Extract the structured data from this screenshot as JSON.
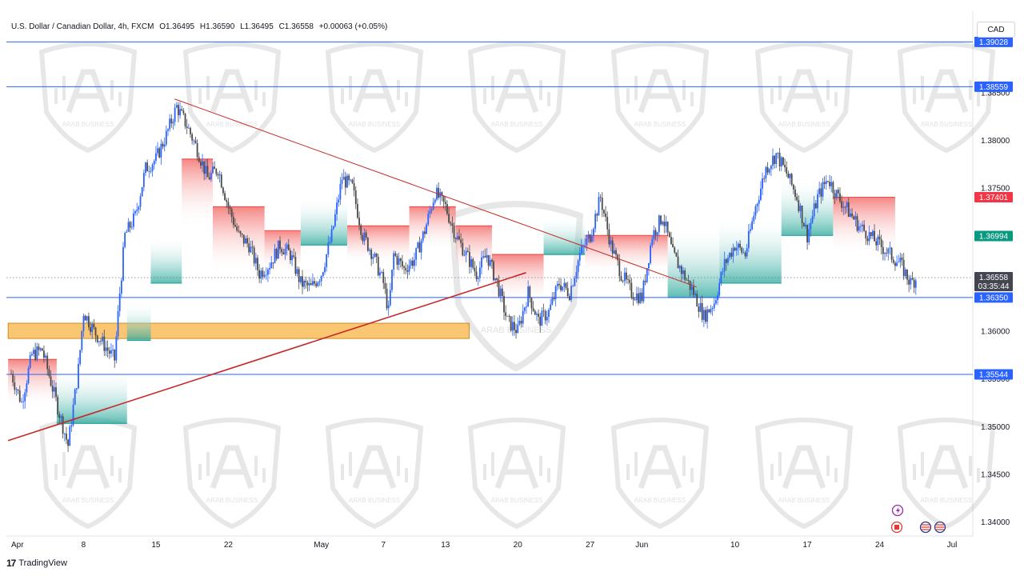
{
  "header": {
    "symbol": "U.S. Dollar / Canadian Dollar, 4h, FXCM",
    "open": "O1.36495",
    "high": "H1.36590",
    "low": "L1.36495",
    "close": "C1.36558",
    "change": "+0.00063 (+0.05%)"
  },
  "currency_label": "CAD",
  "footer": {
    "brand": "TradingView",
    "logo": "17"
  },
  "watermark": {
    "line1": "ARAB BUSINESS"
  },
  "colors": {
    "level_line": "#2962ff",
    "trendline": "#c62828",
    "zone": "#f9a825",
    "cloud_up": "#26a69a",
    "cloud_down": "#ef5350",
    "candle": "#2962ff",
    "candle_dark": "#4a4a4a",
    "price_tag_blue": "#2962ff",
    "price_tag_red": "#f23645",
    "price_tag_green": "#089981",
    "price_tag_dark": "#434651"
  },
  "chart_data": {
    "type": "candlestick",
    "timeframe": "4h",
    "ylim": [
      1.3385,
      1.3935
    ],
    "y_ticks": [
      "1.38500",
      "1.38000",
      "1.37500",
      "1.36000",
      "1.35500",
      "1.35000",
      "1.34500",
      "1.34000"
    ],
    "x_ticks": [
      {
        "label": "Apr",
        "day": 0
      },
      {
        "label": "8",
        "day": 7
      },
      {
        "label": "15",
        "day": 14
      },
      {
        "label": "22",
        "day": 21
      },
      {
        "label": "May",
        "day": 30
      },
      {
        "label": "7",
        "day": 36
      },
      {
        "label": "13",
        "day": 42
      },
      {
        "label": "20",
        "day": 49
      },
      {
        "label": "27",
        "day": 56
      },
      {
        "label": "Jun",
        "day": 61
      },
      {
        "label": "10",
        "day": 70
      },
      {
        "label": "17",
        "day": 77
      },
      {
        "label": "24",
        "day": 84
      },
      {
        "label": "Jul",
        "day": 91
      }
    ],
    "x_range_days": [
      0,
      91.5
    ],
    "horizontal_levels": [
      {
        "price": 1.39028,
        "label": "1.39028"
      },
      {
        "price": 1.38559,
        "label": "1.38559"
      },
      {
        "price": 1.3635,
        "label": "1.36350"
      },
      {
        "price": 1.35544,
        "label": "1.35544"
      }
    ],
    "price_tags": [
      {
        "price": 1.37401,
        "label": "1.37401",
        "color": "red"
      },
      {
        "price": 1.36994,
        "label": "1.36994",
        "color": "green"
      },
      {
        "price": 1.36558,
        "label": "1.36558",
        "color": "dark",
        "countdown": "03:35:44"
      }
    ],
    "current_price": 1.36558,
    "trendlines": [
      {
        "name": "descending-resistance",
        "from": {
          "day": 15.8,
          "price": 1.3843
        },
        "to": {
          "day": 66.3,
          "price": 1.3646
        }
      },
      {
        "name": "ascending-support",
        "from": {
          "day": -0.3,
          "price": 1.3485
        },
        "to": {
          "day": 49.8,
          "price": 1.3661
        }
      }
    ],
    "zone": {
      "from_day": -0.3,
      "to_day": 44.3,
      "price_low": 1.3592,
      "price_high": 1.3608
    },
    "price_path": [
      {
        "day": 0,
        "price": 1.3555
      },
      {
        "day": 1,
        "price": 1.3525
      },
      {
        "day": 2,
        "price": 1.3575
      },
      {
        "day": 3,
        "price": 1.358
      },
      {
        "day": 4,
        "price": 1.354
      },
      {
        "day": 5,
        "price": 1.35
      },
      {
        "day": 5.5,
        "price": 1.348
      },
      {
        "day": 6.5,
        "price": 1.356
      },
      {
        "day": 7,
        "price": 1.362
      },
      {
        "day": 8,
        "price": 1.36
      },
      {
        "day": 9,
        "price": 1.3585
      },
      {
        "day": 10,
        "price": 1.357
      },
      {
        "day": 10.5,
        "price": 1.364
      },
      {
        "day": 11,
        "price": 1.37
      },
      {
        "day": 12,
        "price": 1.372
      },
      {
        "day": 13,
        "price": 1.377
      },
      {
        "day": 14,
        "price": 1.378
      },
      {
        "day": 15,
        "price": 1.3805
      },
      {
        "day": 16,
        "price": 1.3835
      },
      {
        "day": 17,
        "price": 1.3815
      },
      {
        "day": 18,
        "price": 1.379
      },
      {
        "day": 19,
        "price": 1.376
      },
      {
        "day": 20,
        "price": 1.377
      },
      {
        "day": 21,
        "price": 1.373
      },
      {
        "day": 22,
        "price": 1.37
      },
      {
        "day": 23,
        "price": 1.369
      },
      {
        "day": 24,
        "price": 1.366
      },
      {
        "day": 25,
        "price": 1.367
      },
      {
        "day": 26,
        "price": 1.369
      },
      {
        "day": 27,
        "price": 1.368
      },
      {
        "day": 28,
        "price": 1.365
      },
      {
        "day": 29,
        "price": 1.3645
      },
      {
        "day": 30,
        "price": 1.366
      },
      {
        "day": 31,
        "price": 1.37
      },
      {
        "day": 32,
        "price": 1.376
      },
      {
        "day": 33,
        "price": 1.375
      },
      {
        "day": 34,
        "price": 1.37
      },
      {
        "day": 35,
        "price": 1.368
      },
      {
        "day": 36,
        "price": 1.365
      },
      {
        "day": 36.5,
        "price": 1.362
      },
      {
        "day": 37,
        "price": 1.368
      },
      {
        "day": 38,
        "price": 1.3665
      },
      {
        "day": 39,
        "price": 1.3675
      },
      {
        "day": 40,
        "price": 1.3705
      },
      {
        "day": 41,
        "price": 1.3745
      },
      {
        "day": 42,
        "price": 1.373
      },
      {
        "day": 43,
        "price": 1.37
      },
      {
        "day": 44,
        "price": 1.368
      },
      {
        "day": 45,
        "price": 1.366
      },
      {
        "day": 46,
        "price": 1.368
      },
      {
        "day": 47,
        "price": 1.365
      },
      {
        "day": 48,
        "price": 1.361
      },
      {
        "day": 49,
        "price": 1.36
      },
      {
        "day": 50,
        "price": 1.364
      },
      {
        "day": 51,
        "price": 1.361
      },
      {
        "day": 52,
        "price": 1.362
      },
      {
        "day": 53,
        "price": 1.365
      },
      {
        "day": 54,
        "price": 1.364
      },
      {
        "day": 55,
        "price": 1.368
      },
      {
        "day": 56,
        "price": 1.37
      },
      {
        "day": 57,
        "price": 1.374
      },
      {
        "day": 58,
        "price": 1.369
      },
      {
        "day": 59,
        "price": 1.366
      },
      {
        "day": 60,
        "price": 1.364
      },
      {
        "day": 61,
        "price": 1.3635
      },
      {
        "day": 62,
        "price": 1.37
      },
      {
        "day": 63,
        "price": 1.372
      },
      {
        "day": 64,
        "price": 1.368
      },
      {
        "day": 65,
        "price": 1.366
      },
      {
        "day": 66,
        "price": 1.364
      },
      {
        "day": 67,
        "price": 1.3615
      },
      {
        "day": 68,
        "price": 1.363
      },
      {
        "day": 69,
        "price": 1.367
      },
      {
        "day": 70,
        "price": 1.369
      },
      {
        "day": 71,
        "price": 1.368
      },
      {
        "day": 72,
        "price": 1.373
      },
      {
        "day": 73,
        "price": 1.377
      },
      {
        "day": 74,
        "price": 1.3785
      },
      {
        "day": 75,
        "price": 1.3765
      },
      {
        "day": 76,
        "price": 1.374
      },
      {
        "day": 77,
        "price": 1.37
      },
      {
        "day": 78,
        "price": 1.374
      },
      {
        "day": 79,
        "price": 1.376
      },
      {
        "day": 80,
        "price": 1.374
      },
      {
        "day": 81,
        "price": 1.3725
      },
      {
        "day": 82,
        "price": 1.371
      },
      {
        "day": 83,
        "price": 1.37
      },
      {
        "day": 84,
        "price": 1.369
      },
      {
        "day": 85,
        "price": 1.368
      },
      {
        "day": 86,
        "price": 1.367
      },
      {
        "day": 87,
        "price": 1.365
      },
      {
        "day": 87.6,
        "price": 1.36558
      }
    ],
    "cloud_segments": [
      {
        "from_day": -0.3,
        "to_day": 4.4,
        "upper": 1.357,
        "lower": 1.354,
        "trend": "down"
      },
      {
        "from_day": 4.4,
        "to_day": 11.2,
        "upper": 1.354,
        "lower": 1.3503,
        "trend": "up"
      },
      {
        "from_day": 11.2,
        "to_day": 13.5,
        "upper": 1.361,
        "lower": 1.359,
        "trend": "up"
      },
      {
        "from_day": 13.5,
        "to_day": 16.5,
        "upper": 1.368,
        "lower": 1.365,
        "trend": "up"
      },
      {
        "from_day": 16.5,
        "to_day": 19.5,
        "upper": 1.378,
        "lower": 1.373,
        "trend": "down"
      },
      {
        "from_day": 19.5,
        "to_day": 24.5,
        "upper": 1.373,
        "lower": 1.368,
        "trend": "down"
      },
      {
        "from_day": 24.5,
        "to_day": 28.0,
        "upper": 1.3705,
        "lower": 1.368,
        "trend": "down"
      },
      {
        "from_day": 28.0,
        "to_day": 32.5,
        "upper": 1.372,
        "lower": 1.369,
        "trend": "up"
      },
      {
        "from_day": 32.5,
        "to_day": 38.5,
        "upper": 1.371,
        "lower": 1.369,
        "trend": "down"
      },
      {
        "from_day": 38.5,
        "to_day": 43.0,
        "upper": 1.373,
        "lower": 1.3705,
        "trend": "down"
      },
      {
        "from_day": 43.0,
        "to_day": 46.5,
        "upper": 1.371,
        "lower": 1.368,
        "trend": "down"
      },
      {
        "from_day": 46.5,
        "to_day": 51.5,
        "upper": 1.368,
        "lower": 1.365,
        "trend": "down"
      },
      {
        "from_day": 51.5,
        "to_day": 55.5,
        "upper": 1.37,
        "lower": 1.368,
        "trend": "up"
      },
      {
        "from_day": 55.5,
        "to_day": 60.5,
        "upper": 1.37,
        "lower": 1.368,
        "trend": "down"
      },
      {
        "from_day": 60.5,
        "to_day": 63.5,
        "upper": 1.37,
        "lower": 1.368,
        "trend": "down"
      },
      {
        "from_day": 63.5,
        "to_day": 68.5,
        "upper": 1.369,
        "lower": 1.3635,
        "trend": "up"
      },
      {
        "from_day": 68.5,
        "to_day": 74.5,
        "upper": 1.37,
        "lower": 1.365,
        "trend": "up"
      },
      {
        "from_day": 74.5,
        "to_day": 79.5,
        "upper": 1.374,
        "lower": 1.37,
        "trend": "up"
      },
      {
        "from_day": 79.5,
        "to_day": 85.5,
        "upper": 1.374,
        "lower": 1.37,
        "trend": "down"
      }
    ]
  }
}
